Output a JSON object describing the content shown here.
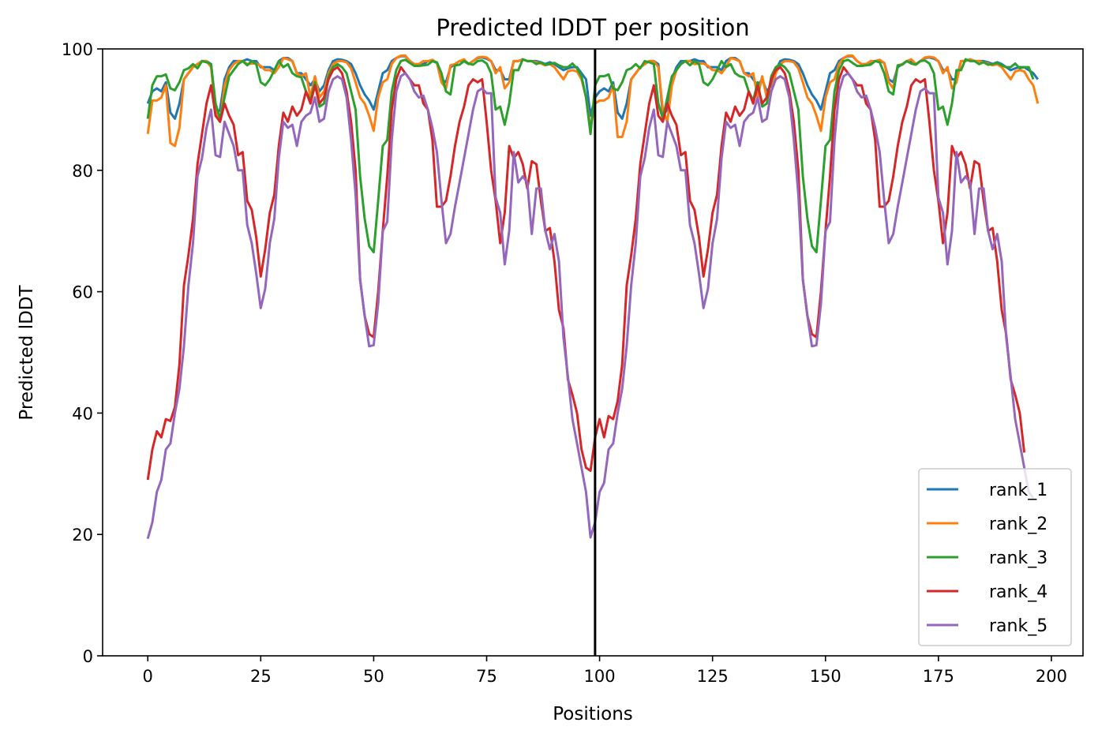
{
  "chart_data": {
    "type": "line",
    "title": "Predicted lDDT per position",
    "xlabel": "Positions",
    "ylabel": "Predicted lDDT",
    "xlim": [
      -10,
      207
    ],
    "ylim": [
      0,
      100
    ],
    "xticks": [
      0,
      25,
      50,
      75,
      100,
      125,
      150,
      175,
      200
    ],
    "yticks": [
      0,
      20,
      40,
      60,
      80,
      100
    ],
    "grid": false,
    "legend_position": "lower-right",
    "vertical_line_x": 99,
    "vertical_line_color": "#000000",
    "series": [
      {
        "name": "rank_1",
        "color": "#1f77b4",
        "values": [
          91,
          93,
          93.5,
          93,
          94.5,
          89.5,
          88.5,
          91,
          95,
          96,
          97,
          97.5,
          98,
          98,
          97.5,
          89,
          90,
          95,
          97,
          98,
          98,
          98,
          98.3,
          98,
          98,
          97,
          97,
          97,
          96.5,
          98,
          98.5,
          98.5,
          98,
          96,
          96,
          95,
          94,
          95,
          93,
          94,
          96.5,
          98,
          98.3,
          98.2,
          98,
          97.5,
          96,
          94,
          92.5,
          91.5,
          90,
          93,
          96,
          96.5,
          98,
          98.5,
          98.8,
          98.8,
          98,
          97.5,
          97.5,
          97.5,
          98,
          98,
          97.7,
          95,
          94.5,
          97,
          97.5,
          98,
          98,
          97.5,
          98,
          98.5,
          98.6,
          98.4,
          98,
          96.5,
          96.5,
          95,
          95,
          98,
          98,
          98.3,
          98,
          98,
          98,
          97.8,
          97.5,
          97.8,
          97.5,
          97,
          96.5,
          96.8,
          97,
          97,
          96,
          95,
          89,
          92,
          93,
          93.5,
          93,
          94.5,
          89.5,
          88.5,
          91,
          95,
          96,
          97,
          97.5,
          98,
          98,
          97.5,
          89,
          90,
          95,
          97,
          98,
          98,
          98,
          98.3,
          98,
          98,
          97,
          97,
          97,
          96.5,
          98,
          98.5,
          98.5,
          98,
          96,
          96,
          95,
          94,
          95,
          93,
          94,
          96.5,
          98,
          98.3,
          98.2,
          98,
          97.5,
          96,
          94,
          92.5,
          91.5,
          90,
          93,
          96,
          96.5,
          98,
          98.5,
          98.8,
          98.8,
          98,
          97.5,
          97.5,
          97.5,
          98,
          98,
          97.7,
          95,
          94.5,
          97,
          97.5,
          98,
          98,
          97.5,
          98,
          98.5,
          98.6,
          98.4,
          98,
          96.5,
          96.5,
          95,
          95,
          98,
          98,
          98.3,
          98,
          98,
          98,
          97.8,
          97.5,
          97.8,
          97.5,
          97,
          96.5,
          96.8,
          97,
          97,
          96.5,
          96,
          95
        ]
      },
      {
        "name": "rank_2",
        "color": "#ff7f0e",
        "values": [
          86,
          91.5,
          91.5,
          92,
          94,
          84.5,
          84,
          87,
          95,
          96,
          97,
          97.5,
          98,
          98,
          97,
          90,
          88,
          94,
          96.5,
          97.5,
          98,
          98,
          97.5,
          97.6,
          97.6,
          97.2,
          96.5,
          96.5,
          96,
          97,
          98.5,
          98.3,
          98,
          96,
          95.5,
          96,
          92,
          95.5,
          92,
          93,
          96,
          97.5,
          98,
          98,
          97.8,
          96.8,
          94.5,
          92,
          91,
          89,
          86.5,
          92,
          94.5,
          95,
          97.5,
          98.5,
          98.9,
          98.9,
          98,
          97.5,
          97.5,
          98,
          98,
          98.2,
          97.7,
          94.5,
          93.5,
          97.3,
          97.5,
          98,
          98.3,
          97.5,
          98,
          98.6,
          98.7,
          98.6,
          98,
          96,
          97,
          93.5,
          94.5,
          98,
          98,
          98.3,
          98,
          98,
          97.8,
          97.6,
          97.3,
          97.5,
          97,
          96,
          95,
          96.3,
          96.5,
          96.3,
          95,
          92,
          87,
          91,
          91.5,
          91.5,
          92,
          94,
          85.5,
          85.5,
          88,
          95,
          96,
          97,
          97.5,
          98,
          98,
          97,
          90,
          88,
          94,
          96.5,
          97.5,
          98,
          98,
          97.5,
          97.6,
          97.6,
          97.2,
          96.5,
          96.5,
          96,
          97,
          98.5,
          98.3,
          98,
          96,
          95.5,
          96,
          92,
          95.5,
          92,
          93,
          96,
          97.5,
          98,
          98,
          97.8,
          96.8,
          94.5,
          92,
          91,
          89,
          86.5,
          92,
          94.5,
          95,
          97.5,
          98.5,
          98.9,
          98.9,
          98,
          97.5,
          97.5,
          98,
          98,
          98.2,
          97.7,
          94.5,
          93.5,
          97.3,
          97.5,
          98,
          98.3,
          97.5,
          98,
          98.6,
          98.7,
          98.6,
          98,
          96,
          97,
          93.5,
          94.5,
          98,
          98,
          98.3,
          98,
          98,
          97.8,
          97.6,
          97.3,
          97.5,
          97,
          96,
          95,
          96.3,
          96.5,
          96.3,
          95,
          94,
          91
        ]
      },
      {
        "name": "rank_3",
        "color": "#2ca02c",
        "values": [
          88.5,
          94,
          95.5,
          95.5,
          95.8,
          93.5,
          93.2,
          94.5,
          96.5,
          96.8,
          97.5,
          96.8,
          98,
          97.8,
          97.5,
          91,
          88.5,
          92,
          95.5,
          96.5,
          97.5,
          98,
          97.3,
          98,
          97.5,
          94.5,
          94,
          95,
          96.5,
          98,
          97,
          97.5,
          96,
          95.5,
          95.3,
          93,
          91.5,
          94.5,
          90.5,
          91,
          95.5,
          97,
          97.5,
          97,
          96,
          93,
          90,
          79,
          72,
          67.5,
          66.5,
          75,
          84,
          85,
          93,
          96.5,
          98,
          98.2,
          97.7,
          97.2,
          97.2,
          97.3,
          97.4,
          98,
          97.8,
          96,
          93,
          92.5,
          97.3,
          97.4,
          98,
          97.6,
          97.4,
          98,
          98.1,
          97.6,
          96,
          90,
          90.5,
          87.5,
          91,
          96.5,
          96.5,
          98.3,
          98,
          98,
          97.5,
          97.8,
          97.4,
          97.5,
          97.7,
          97.3,
          97,
          97,
          97.6,
          96.8,
          95.5,
          92,
          86,
          94,
          95.5,
          95.5,
          95.8,
          93.5,
          93.2,
          94.5,
          96.5,
          96.8,
          97.5,
          96.8,
          98,
          97.8,
          97.5,
          91,
          88.5,
          92,
          95.5,
          96.5,
          97.5,
          98,
          97.3,
          98,
          97.5,
          94.5,
          94,
          95,
          96.5,
          98,
          97,
          97.5,
          96,
          95.5,
          95.3,
          93,
          91.5,
          94.5,
          90.5,
          91,
          95.5,
          97,
          97.5,
          97,
          96,
          93,
          90,
          79,
          72,
          67.5,
          66.5,
          75,
          84,
          85,
          93,
          96.5,
          98,
          98.2,
          97.7,
          97.2,
          97.2,
          97.3,
          97.4,
          98,
          97.8,
          96,
          93,
          92.5,
          97.3,
          97.4,
          98,
          97.6,
          97.4,
          98,
          98.1,
          97.6,
          96,
          90,
          90.5,
          87.5,
          91,
          96.5,
          96.5,
          98.3,
          98,
          98,
          97.5,
          97.8,
          97.4,
          97.5,
          97.7,
          97.3,
          97,
          97,
          97.6,
          96.8,
          97,
          97,
          95
        ]
      },
      {
        "name": "rank_4",
        "color": "#d62728",
        "values": [
          29,
          34,
          37,
          36,
          39,
          38.7,
          41,
          48,
          61,
          66,
          72,
          81,
          86,
          91,
          94,
          89,
          88,
          91,
          89,
          87.5,
          82.5,
          83,
          75,
          73.5,
          69,
          62.5,
          67,
          73,
          76,
          84,
          89.5,
          88,
          90.5,
          89,
          90,
          93,
          91,
          94,
          91,
          92,
          95,
          96.5,
          97,
          96,
          93,
          88,
          80,
          62,
          56,
          53,
          52.5,
          60,
          70,
          79,
          90,
          95,
          97,
          96,
          95,
          94,
          94,
          91,
          90,
          85,
          74,
          74,
          75,
          79,
          84,
          88,
          90.5,
          94,
          95,
          94.5,
          95,
          88,
          80,
          75,
          68,
          73,
          84,
          82,
          83,
          81,
          77,
          81.5,
          81,
          75,
          70,
          70.5,
          65,
          57,
          54,
          45.5,
          43,
          40,
          34,
          31,
          30.5,
          36,
          39,
          36,
          39.5,
          39,
          42,
          48,
          61,
          66,
          72,
          81,
          86,
          91,
          94,
          89,
          88,
          91,
          89,
          87.5,
          82.5,
          83,
          75,
          73.5,
          69,
          62.5,
          67,
          73,
          76,
          84,
          89.5,
          88,
          90.5,
          89,
          90,
          93,
          91,
          94,
          91,
          92,
          95,
          96.5,
          97,
          96,
          93,
          88,
          80,
          62,
          56,
          53,
          52.5,
          60,
          70,
          79,
          90,
          95,
          97,
          96,
          95,
          94,
          94,
          91,
          90,
          85,
          74,
          74,
          75,
          79,
          84,
          88,
          90.5,
          94,
          95,
          94.5,
          95,
          88,
          80,
          75,
          68,
          73,
          84,
          82,
          83,
          81,
          77,
          81.5,
          81,
          75,
          70,
          70.5,
          65,
          57,
          53,
          45.5,
          43,
          40,
          33.5
        ]
      },
      {
        "name": "rank_5",
        "color": "#9467bd",
        "values": [
          19.3,
          22,
          27,
          29,
          34,
          35,
          40,
          44,
          51,
          61,
          68,
          79,
          82,
          87,
          90,
          82.5,
          82.2,
          88,
          86,
          84,
          80,
          80,
          71,
          68,
          63,
          57.3,
          60.5,
          68,
          72,
          82,
          88,
          87,
          87.5,
          84,
          88,
          89,
          89.5,
          92,
          88,
          88.5,
          93,
          95,
          95.5,
          95,
          92,
          85,
          76,
          62,
          56,
          51,
          51.2,
          58,
          70,
          71.5,
          85,
          93,
          95.5,
          96,
          95,
          93,
          92,
          92.3,
          90,
          87,
          83,
          75,
          68,
          69.5,
          74,
          78,
          82,
          86,
          90,
          93,
          93.5,
          92.7,
          92.7,
          75.5,
          73,
          64.5,
          70,
          83,
          78,
          79,
          78,
          69.5,
          77,
          77,
          70,
          67,
          69.5,
          65,
          52.5,
          46,
          39,
          35,
          31,
          27,
          19.5,
          22,
          27,
          28.5,
          34,
          35,
          40,
          44,
          51,
          61,
          68,
          79,
          82,
          87,
          90,
          82.5,
          82.2,
          88,
          86,
          84,
          80,
          80,
          71,
          68,
          63,
          57.3,
          60.5,
          68,
          72,
          82,
          88,
          87,
          87.5,
          84,
          88,
          89,
          89.5,
          92,
          88,
          88.5,
          93,
          95,
          95.5,
          95,
          92,
          85,
          76,
          62,
          56,
          51,
          51.2,
          58,
          70,
          71.5,
          85,
          93,
          95.5,
          96,
          95,
          93,
          92,
          92.3,
          90,
          87,
          83,
          75,
          68,
          69.5,
          74,
          78,
          82,
          86,
          90,
          93,
          93.5,
          92.7,
          92.7,
          75.5,
          73,
          64.5,
          70,
          83,
          78,
          79,
          78,
          69.5,
          77,
          77,
          70,
          67,
          69.5,
          65,
          52.5,
          46,
          39,
          35,
          31,
          27,
          26
        ]
      }
    ]
  }
}
